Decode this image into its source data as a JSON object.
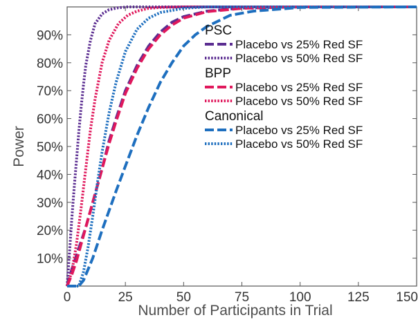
{
  "chart_data": {
    "type": "line",
    "title": "",
    "xlabel": "Number of Participants in Trial",
    "ylabel": "Power",
    "xlim": [
      0,
      150
    ],
    "ylim": [
      0,
      1.0
    ],
    "x_ticks": [
      0,
      25,
      50,
      75,
      100,
      125,
      150
    ],
    "x_tick_labels": [
      "0",
      "25",
      "50",
      "75",
      "100",
      "125",
      "150"
    ],
    "y_ticks": [
      0.1,
      0.2,
      0.3,
      0.4,
      0.5,
      0.6,
      0.7,
      0.8,
      0.9
    ],
    "y_tick_labels": [
      "10%",
      "20%",
      "30%",
      "40%",
      "50%",
      "60%",
      "70%",
      "80%",
      "90%"
    ],
    "grid": false,
    "legend_position": "top-right",
    "legend_groups": [
      {
        "title": "PSC",
        "entries": [
          "Placebo vs 25% Red SF",
          "Placebo vs 50% Red SF"
        ]
      },
      {
        "title": "BPP",
        "entries": [
          "Placebo vs 25% Red SF",
          "Placebo vs 50% Red SF"
        ]
      },
      {
        "title": "Canonical",
        "entries": [
          "Placebo vs 25% Red SF",
          "Placebo vs 50% Red SF"
        ]
      }
    ],
    "series": [
      {
        "group": "PSC",
        "name": "Placebo vs 25% Red SF",
        "color": "#5b2d91",
        "style": "dashed",
        "x": [
          0,
          2,
          4,
          6,
          8,
          10,
          12,
          15,
          18,
          21,
          25,
          30,
          35,
          40,
          45,
          50,
          60,
          75,
          100,
          150
        ],
        "y": [
          0,
          0.06,
          0.11,
          0.16,
          0.21,
          0.27,
          0.33,
          0.42,
          0.52,
          0.6,
          0.7,
          0.79,
          0.86,
          0.91,
          0.945,
          0.965,
          0.985,
          0.996,
          1.0,
          1.0
        ]
      },
      {
        "group": "PSC",
        "name": "Placebo vs 50% Red SF",
        "color": "#5b2d91",
        "style": "dotted",
        "x": [
          0,
          1,
          2,
          3,
          4,
          5,
          6,
          7,
          8,
          10,
          12,
          15,
          18,
          22,
          26,
          30,
          40,
          150
        ],
        "y": [
          0,
          0.12,
          0.24,
          0.35,
          0.45,
          0.55,
          0.64,
          0.72,
          0.79,
          0.88,
          0.94,
          0.975,
          0.99,
          0.997,
          1.0,
          1.0,
          1.0,
          1.0
        ]
      },
      {
        "group": "BPP",
        "name": "Placebo vs 25% Red SF",
        "color": "#e0185c",
        "style": "dashed",
        "x": [
          0,
          2,
          4,
          6,
          8,
          10,
          12,
          15,
          18,
          21,
          25,
          30,
          35,
          40,
          45,
          50,
          60,
          75,
          100,
          150
        ],
        "y": [
          0,
          0.04,
          0.09,
          0.15,
          0.21,
          0.27,
          0.33,
          0.42,
          0.51,
          0.59,
          0.69,
          0.78,
          0.85,
          0.9,
          0.935,
          0.96,
          0.983,
          0.995,
          1.0,
          1.0
        ]
      },
      {
        "group": "BPP",
        "name": "Placebo vs 50% Red SF",
        "color": "#e0185c",
        "style": "dotted",
        "x": [
          0,
          2,
          4,
          6,
          8,
          10,
          12,
          15,
          18,
          22,
          26,
          30,
          35,
          40,
          50,
          150
        ],
        "y": [
          0,
          0.05,
          0.15,
          0.28,
          0.42,
          0.56,
          0.67,
          0.8,
          0.88,
          0.94,
          0.97,
          0.985,
          0.995,
          0.998,
          1.0,
          1.0
        ]
      },
      {
        "group": "Canonical",
        "name": "Placebo vs 25% Red SF",
        "color": "#1e6fbf",
        "style": "dashed",
        "x": [
          0,
          3,
          5,
          7,
          9,
          11,
          13,
          15,
          18,
          21,
          25,
          30,
          35,
          40,
          45,
          50,
          55,
          60,
          70,
          80,
          100,
          150
        ],
        "y": [
          0,
          0.0,
          0.0,
          0.02,
          0.06,
          0.1,
          0.15,
          0.2,
          0.27,
          0.34,
          0.43,
          0.54,
          0.64,
          0.73,
          0.8,
          0.86,
          0.9,
          0.93,
          0.97,
          0.985,
          0.998,
          1.0
        ]
      },
      {
        "group": "Canonical",
        "name": "Placebo vs 50% Red SF",
        "color": "#1e6fbf",
        "style": "dotted",
        "x": [
          0,
          3,
          5,
          7,
          9,
          11,
          13,
          15,
          18,
          21,
          25,
          30,
          35,
          40,
          50,
          60,
          150
        ],
        "y": [
          0,
          0.0,
          0.0,
          0.05,
          0.14,
          0.25,
          0.37,
          0.48,
          0.62,
          0.73,
          0.84,
          0.92,
          0.96,
          0.98,
          0.995,
          1.0,
          1.0
        ]
      }
    ]
  }
}
